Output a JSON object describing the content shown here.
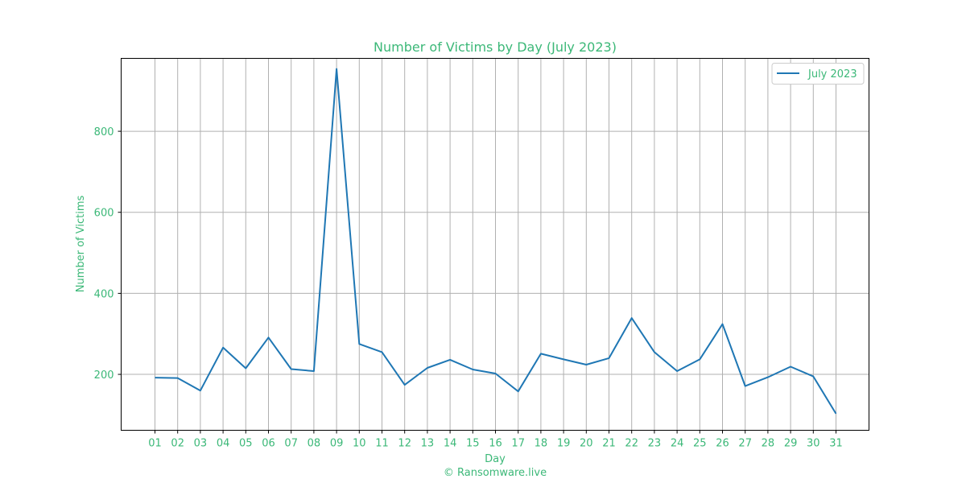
{
  "chart_data": {
    "type": "line",
    "title": "Number of Victims by Day (July 2023)",
    "xlabel": "Day",
    "ylabel": "Number of Victims",
    "footer": "© Ransomware.live",
    "x": [
      "01",
      "02",
      "03",
      "04",
      "05",
      "06",
      "07",
      "08",
      "09",
      "10",
      "11",
      "12",
      "13",
      "14",
      "15",
      "16",
      "17",
      "18",
      "19",
      "20",
      "21",
      "22",
      "23",
      "24",
      "25",
      "26",
      "27",
      "28",
      "29",
      "30",
      "31"
    ],
    "y_ticks": [
      200,
      400,
      600,
      800
    ],
    "ylim": [
      62,
      980
    ],
    "grid": true,
    "legend_position": "top-right",
    "series": [
      {
        "name": "July 2023",
        "color": "#1f77b4",
        "values": [
          192,
          191,
          160,
          266,
          215,
          291,
          213,
          208,
          954,
          275,
          255,
          174,
          216,
          236,
          212,
          202,
          158,
          251,
          237,
          224,
          240,
          339,
          255,
          208,
          237,
          324,
          171,
          193,
          219,
          195,
          103
        ]
      }
    ]
  },
  "colors": {
    "text": "#3cb878",
    "line": "#1f77b4",
    "grid": "#b0b0b0"
  }
}
